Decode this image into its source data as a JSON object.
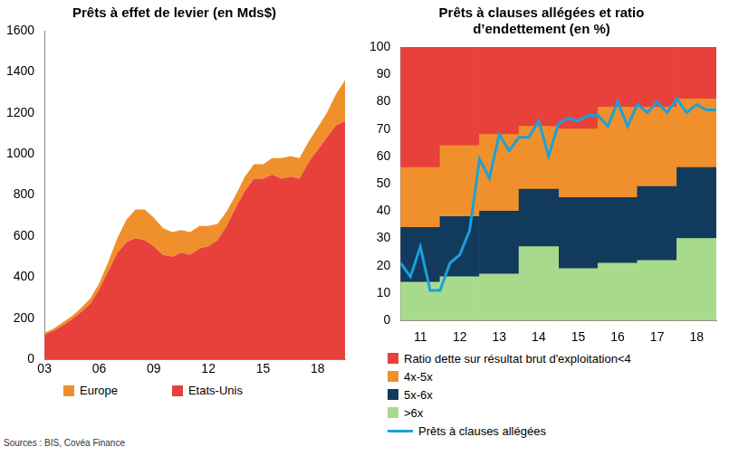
{
  "source": "Sources : BIS, Covéa Finance",
  "chart_data": [
    {
      "type": "area",
      "title": "Prêts à effet de levier (en Mds$)",
      "categories": [
        "03",
        null,
        null,
        null,
        null,
        null,
        "06",
        null,
        null,
        null,
        null,
        null,
        "09",
        null,
        null,
        null,
        null,
        null,
        "12",
        null,
        null,
        null,
        null,
        null,
        "15",
        null,
        null,
        null,
        null,
        null,
        "18",
        null,
        null,
        null
      ],
      "series": [
        {
          "name": "Etats-Unis",
          "color": "#e8413c",
          "values": [
            120,
            140,
            165,
            195,
            230,
            270,
            340,
            430,
            520,
            570,
            590,
            580,
            550,
            510,
            500,
            520,
            510,
            540,
            550,
            580,
            650,
            740,
            820,
            880,
            880,
            900,
            880,
            890,
            880,
            960,
            1020,
            1080,
            1140,
            1160
          ]
        },
        {
          "name": "Europe",
          "color": "#f0902c",
          "values": [
            10,
            10,
            15,
            15,
            20,
            25,
            30,
            45,
            70,
            110,
            140,
            150,
            140,
            130,
            120,
            110,
            110,
            110,
            100,
            80,
            70,
            60,
            70,
            70,
            70,
            80,
            100,
            100,
            100,
            100,
            110,
            120,
            150,
            200
          ]
        }
      ],
      "ylim": [
        0,
        1600
      ],
      "yticks": [
        0,
        200,
        400,
        600,
        800,
        1000,
        1200,
        1400,
        1600
      ],
      "stacked": true,
      "grid": false,
      "legend": "bottom"
    },
    {
      "type": "bar",
      "title": [
        "Prêts à clauses allégées et ratio",
        "d’endettement (en %)"
      ],
      "x": [
        2011,
        2012,
        2013,
        2014,
        2015,
        2016,
        2017,
        2018
      ],
      "series": [
        {
          "name": "Ratio dette sur résultat brut d'exploitation<4",
          "color": "#e8413c",
          "values": [
            44,
            36,
            32,
            29,
            30,
            22,
            22,
            19
          ]
        },
        {
          "name": "4x-5x",
          "color": "#f0902c",
          "values": [
            22,
            26,
            28,
            23,
            25,
            33,
            29,
            25
          ]
        },
        {
          "name": "5x-6x",
          "color": "#123a5c",
          "values": [
            20,
            22,
            23,
            21,
            26,
            24,
            27,
            26
          ]
        },
        {
          "name": ">6x",
          "color": "#a8da8c",
          "values": [
            14,
            16,
            17,
            27,
            19,
            21,
            22,
            30
          ]
        },
        {
          "name": "Prêts à clauses allégées",
          "color": "#1ba1d8",
          "type": "line",
          "x": [
            2010.5,
            2010.75,
            2011,
            2011.25,
            2011.5,
            2011.75,
            2012,
            2012.25,
            2012.5,
            2012.75,
            2013,
            2013.25,
            2013.5,
            2013.75,
            2014,
            2014.25,
            2014.5,
            2014.75,
            2015,
            2015.25,
            2015.5,
            2015.75,
            2016,
            2016.25,
            2016.5,
            2016.75,
            2017,
            2017.25,
            2017.5,
            2017.75,
            2018,
            2018.25,
            2018.5
          ],
          "values": [
            21,
            16,
            27,
            11,
            11,
            21,
            24,
            33,
            59,
            52,
            68,
            62,
            67,
            67,
            73,
            60,
            72,
            74,
            73,
            75,
            75,
            71,
            80,
            71,
            79,
            76,
            80,
            76,
            81,
            76,
            79,
            77,
            77
          ]
        }
      ],
      "xlim": [
        2010.5,
        2018.5
      ],
      "xticks": [
        {
          "value": 2011,
          "label": "11"
        },
        {
          "value": 2012,
          "label": "12"
        },
        {
          "value": 2013,
          "label": "13"
        },
        {
          "value": 2014,
          "label": "14"
        },
        {
          "value": 2015,
          "label": "15"
        },
        {
          "value": 2016,
          "label": "16"
        },
        {
          "value": 2017,
          "label": "17"
        },
        {
          "value": 2018,
          "label": "18"
        }
      ],
      "ylim": [
        0,
        100
      ],
      "yticks": [
        0,
        10,
        20,
        30,
        40,
        50,
        60,
        70,
        80,
        90,
        100
      ],
      "stacked": true,
      "grid": false,
      "legend": "bottom"
    }
  ]
}
